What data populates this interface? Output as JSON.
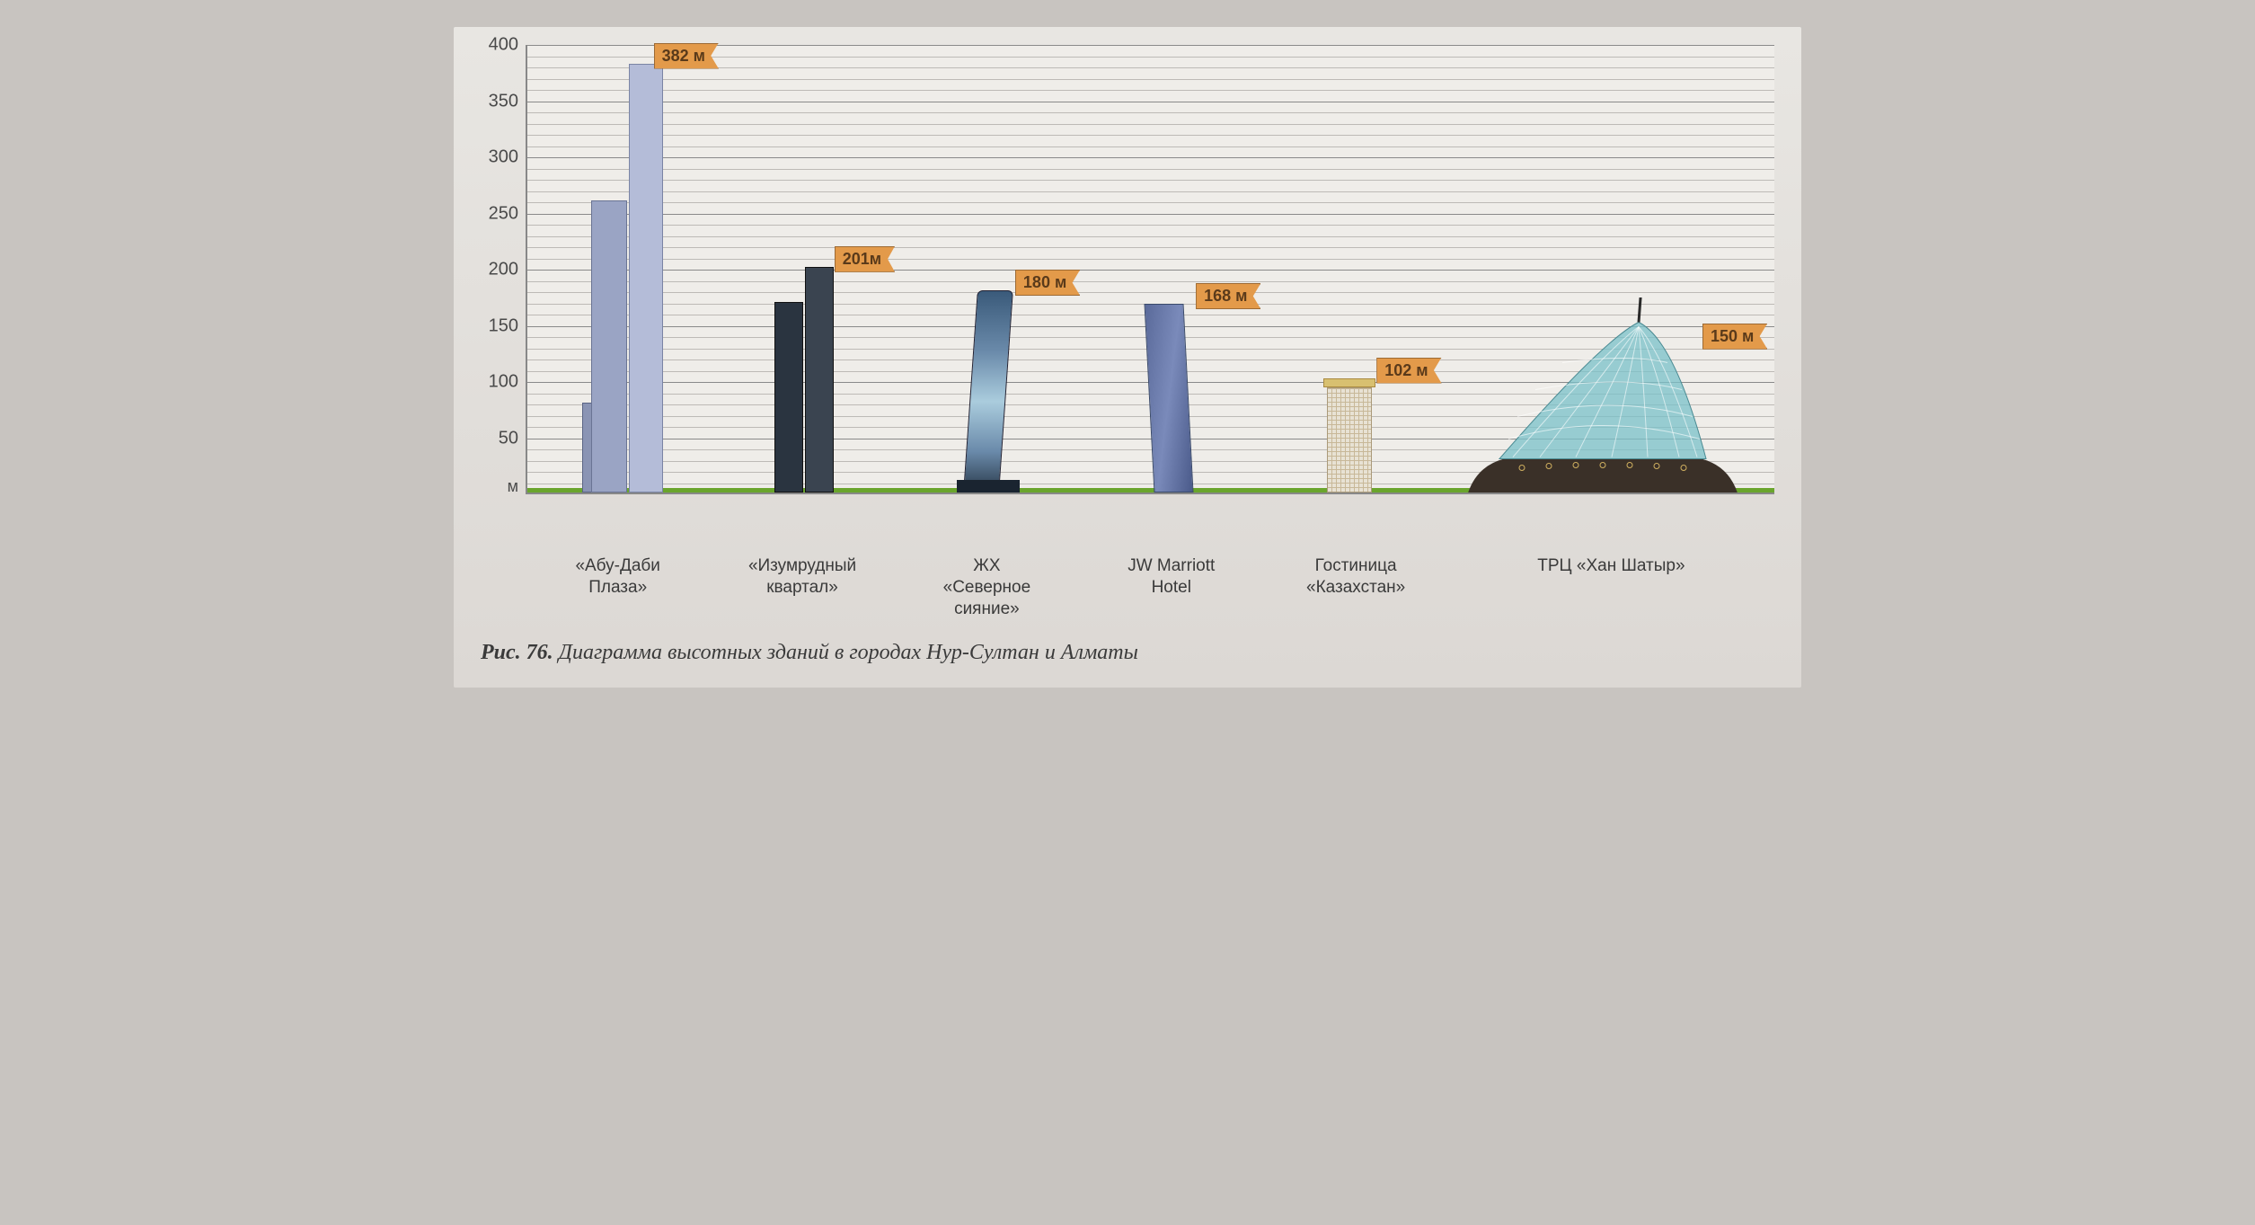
{
  "chart": {
    "type": "bar-pictogram",
    "y_unit": "м",
    "ylim": [
      0,
      400
    ],
    "ytick_major_step": 50,
    "ytick_minor_step": 10,
    "yticks": [
      50,
      100,
      150,
      200,
      250,
      300,
      350,
      400
    ],
    "grid_color_major": "#8a8a8a",
    "grid_color_minor": "#bdbab6",
    "background_color": "#efede9",
    "ground_color": "#6aa52c",
    "flag_bg": "#e39a4a",
    "flag_border": "#9c6a34",
    "axis_fontsize_pt": 15,
    "label_fontsize_pt": 14,
    "buildings": [
      {
        "id": "abu-dabi-plaza",
        "label": "«Абу-Даби\nПлаза»",
        "height_m": 382,
        "flag_text": "382 м",
        "colors": [
          "#9aa4c4",
          "#b4bcd8",
          "#8a94b4"
        ],
        "tower_heights_m": [
          260,
          382,
          80
        ]
      },
      {
        "id": "emerald-quarter",
        "label": "«Изумрудный\nквартал»",
        "height_m": 201,
        "flag_text": "201м",
        "colors": [
          "#2a3440",
          "#3a4450"
        ],
        "tower_heights_m": [
          170,
          201
        ]
      },
      {
        "id": "northern-lights",
        "label": "ЖХ\n«Северное\nсияние»",
        "height_m": 180,
        "flag_text": "180 м",
        "colors": [
          "#3a5a7a",
          "#6a8aaa",
          "#aaccdd"
        ]
      },
      {
        "id": "jw-marriott",
        "label": "JW Marriott\nHotel",
        "height_m": 168,
        "flag_text": "168 м",
        "colors": [
          "#5a6a9a",
          "#7a8aba"
        ]
      },
      {
        "id": "hotel-kazakhstan",
        "label": "Гостиница\n«Казахстан»",
        "height_m": 102,
        "flag_text": "102 м",
        "colors": [
          "#e8e2d4",
          "#d8c070"
        ]
      },
      {
        "id": "khan-shatyr",
        "label": "ТРЦ «Хан Шатыр»",
        "height_m": 150,
        "flag_text": "150 м",
        "colors": [
          "#7ac0c8",
          "#3a3028",
          "#d0b060"
        ],
        "wide": true
      }
    ]
  },
  "caption": {
    "fig_label": "Рис. 76.",
    "text": "Диаграмма высотных зданий в городах Нур-Султан и Алматы",
    "fontsize_pt": 18
  }
}
